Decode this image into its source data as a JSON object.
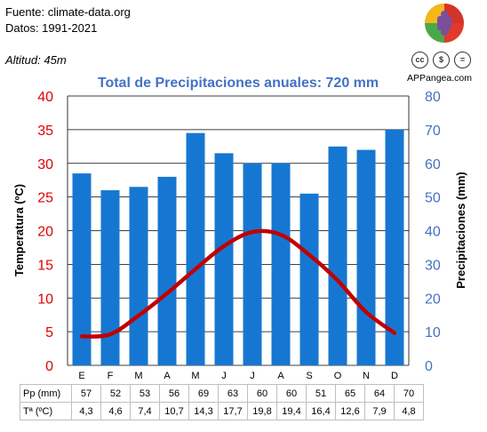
{
  "header": {
    "fuente": "Fuente: climate-data.org",
    "datos": "Datos: 1991-2021",
    "altitud": "Altitud: 45m"
  },
  "branding": {
    "site": "APPangea.com",
    "logo_icon": "puzzle-icon",
    "license_icons": [
      "cc-icon",
      "cc-by-icon",
      "cc-nd-icon"
    ],
    "license_labels": [
      "cc",
      "$",
      "="
    ]
  },
  "table": {
    "pp_label": "Pp (mm)",
    "temp_label": "Tª (ºC)",
    "pp_values": [
      "57",
      "52",
      "53",
      "56",
      "69",
      "63",
      "60",
      "60",
      "51",
      "65",
      "64",
      "70"
    ],
    "temp_values": [
      "4,3",
      "4,6",
      "7,4",
      "10,7",
      "14,3",
      "17,7",
      "19,8",
      "19,4",
      "16,4",
      "12,6",
      "7,9",
      "4,8"
    ]
  },
  "colors": {
    "bar": "#1677d2",
    "line": "#c00000",
    "left_axis": "#e00000",
    "right_axis": "#4472c4",
    "title": "#4472c4",
    "grid": "#000000"
  },
  "chart_data": {
    "type": "bar",
    "title": "Total de Precipitaciones anuales: 720 mm",
    "categories": [
      "E",
      "F",
      "M",
      "A",
      "M",
      "J",
      "J",
      "A",
      "S",
      "O",
      "N",
      "D"
    ],
    "ylabel_left": "Temperatura (ºC)",
    "ylabel_right": "Precipitaciones (mm)",
    "ylim_left": [
      0,
      40
    ],
    "ylim_right": [
      0,
      80
    ],
    "yticks_left": [
      "0",
      "5",
      "10",
      "15",
      "20",
      "25",
      "30",
      "35",
      "40"
    ],
    "yticks_right": [
      "0",
      "10",
      "20",
      "30",
      "40",
      "50",
      "60",
      "70",
      "80"
    ],
    "grid": true,
    "series": [
      {
        "type": "bar",
        "axis": "right",
        "values": [
          57,
          52,
          53,
          56,
          69,
          63,
          60,
          60,
          51,
          65,
          64,
          70
        ]
      },
      {
        "type": "line",
        "axis": "left",
        "values": [
          4.3,
          4.6,
          7.4,
          10.7,
          14.3,
          17.7,
          19.8,
          19.4,
          16.4,
          12.6,
          7.9,
          4.8
        ]
      }
    ]
  }
}
